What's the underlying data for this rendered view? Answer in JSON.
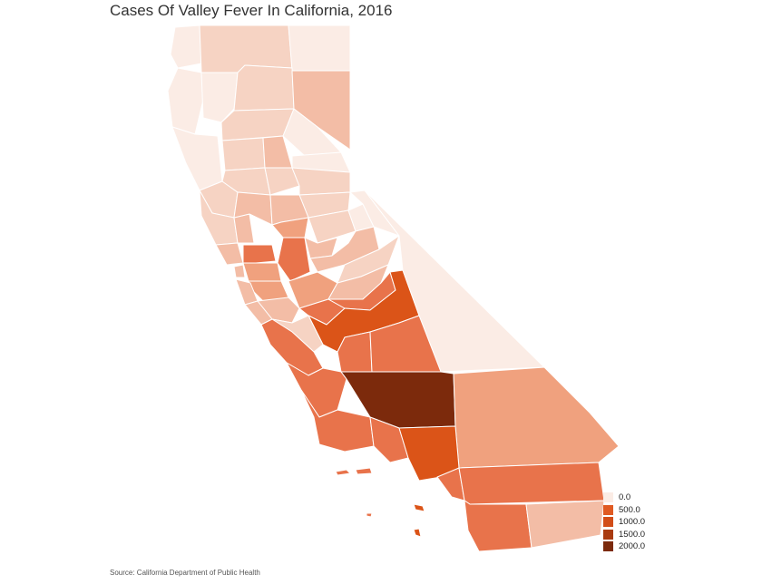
{
  "title": "Cases Of Valley Fever In California, 2016",
  "source": "Source: California Department of Public Health",
  "legend": [
    {
      "label": "0.0",
      "color": "#fbece5"
    },
    {
      "label": "500.0",
      "color": "#e05a22"
    },
    {
      "label": "1000.0",
      "color": "#d24d18"
    },
    {
      "label": "1500.0",
      "color": "#a93b10"
    },
    {
      "label": "2000.0",
      "color": "#7c2a0c"
    }
  ],
  "colors": {
    "c0": "#fbece5",
    "c1": "#f6d3c3",
    "c2": "#f3bda6",
    "c3": "#f0a17e",
    "c4": "#e8734b",
    "c5": "#db5418",
    "c6": "#7c2a0c"
  }
}
